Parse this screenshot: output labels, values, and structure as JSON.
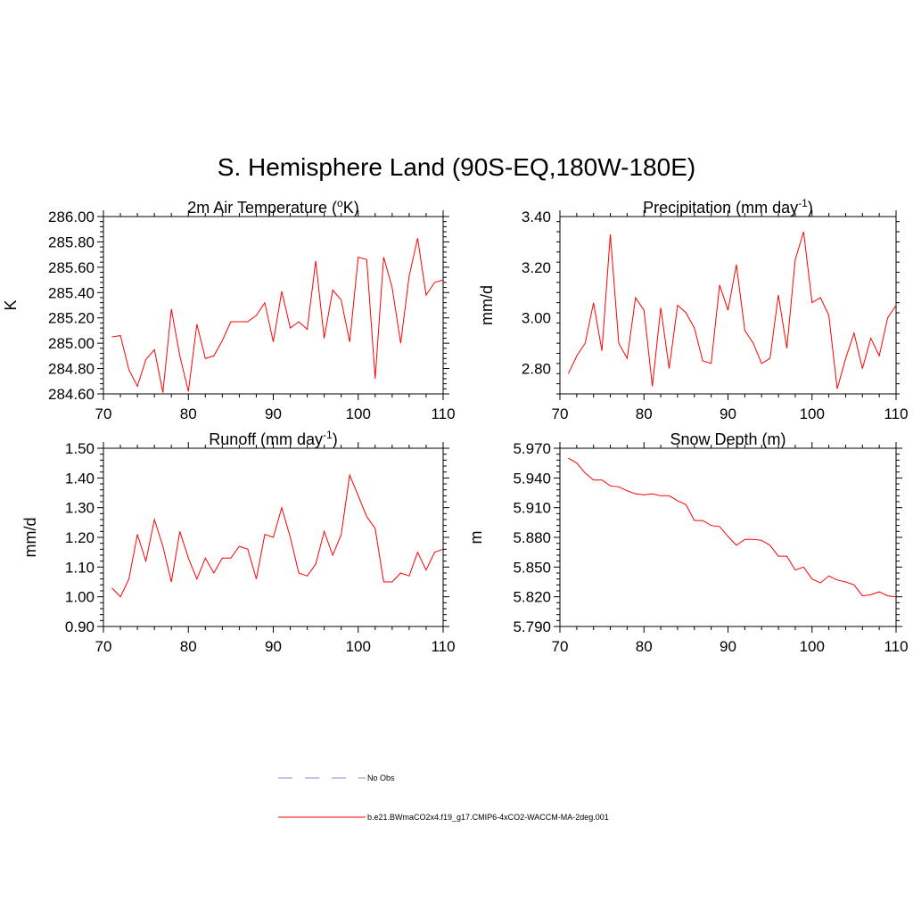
{
  "title": "S. Hemisphere Land (90S-EQ,180W-180E)",
  "legend": {
    "obs_label": "No Obs",
    "model_label": "b.e21.BWmaCO2x4.f19_g17.CMIP6-4xCO2-WACCM-MA-2deg.001",
    "obs_color": "#a0a0e8",
    "model_color": "#ff0000"
  },
  "chart_data": [
    {
      "type": "line",
      "title_main": "2m Air Temperature (",
      "title_sup": "o",
      "title_tail": "K)",
      "ylabel": "K",
      "xlim": [
        70,
        110
      ],
      "ylim": [
        284.6,
        286.0
      ],
      "xticks": [
        70,
        80,
        90,
        100,
        110
      ],
      "xtick_labels": [
        "70",
        "80",
        "90",
        "100",
        "110"
      ],
      "yticks": [
        284.6,
        284.8,
        285.0,
        285.2,
        285.4,
        285.6,
        285.8,
        286.0
      ],
      "ytick_labels": [
        "284.60",
        "284.80",
        "285.00",
        "285.20",
        "285.40",
        "285.60",
        "285.80",
        "286.00"
      ],
      "x": [
        71,
        72,
        73,
        74,
        75,
        76,
        77,
        78,
        79,
        80,
        81,
        82,
        83,
        84,
        85,
        86,
        87,
        88,
        89,
        90,
        91,
        92,
        93,
        94,
        95,
        96,
        97,
        98,
        99,
        100,
        101,
        102,
        103,
        104,
        105,
        106,
        107,
        108,
        109,
        110
      ],
      "values": [
        285.05,
        285.06,
        284.79,
        284.66,
        284.87,
        284.95,
        284.61,
        285.27,
        284.9,
        284.62,
        285.15,
        284.88,
        284.9,
        285.02,
        285.17,
        285.17,
        285.17,
        285.22,
        285.32,
        285.01,
        285.41,
        285.12,
        285.17,
        285.11,
        285.65,
        285.04,
        285.42,
        285.34,
        285.01,
        285.68,
        285.66,
        284.72,
        285.68,
        285.44,
        285.0,
        285.53,
        285.83,
        285.38,
        285.48,
        285.5
      ],
      "color": "#ff0000"
    },
    {
      "type": "line",
      "title_main": "Precipitation (mm day",
      "title_sup": "-1",
      "title_tail": ")",
      "ylabel": "mm/d",
      "xlim": [
        70,
        110
      ],
      "ylim": [
        2.7,
        3.4
      ],
      "xticks": [
        70,
        80,
        90,
        100,
        110
      ],
      "xtick_labels": [
        "70",
        "80",
        "90",
        "100",
        "110"
      ],
      "yticks": [
        2.8,
        3.0,
        3.2,
        3.4
      ],
      "ytick_labels": [
        "2.80",
        "3.00",
        "3.20",
        "3.40"
      ],
      "x": [
        71,
        72,
        73,
        74,
        75,
        76,
        77,
        78,
        79,
        80,
        81,
        82,
        83,
        84,
        85,
        86,
        87,
        88,
        89,
        90,
        91,
        92,
        93,
        94,
        95,
        96,
        97,
        98,
        99,
        100,
        101,
        102,
        103,
        104,
        105,
        106,
        107,
        108,
        109,
        110
      ],
      "values": [
        2.78,
        2.85,
        2.9,
        3.06,
        2.87,
        3.33,
        2.9,
        2.84,
        3.08,
        3.03,
        2.73,
        3.04,
        2.8,
        3.05,
        3.02,
        2.96,
        2.83,
        2.82,
        3.13,
        3.03,
        3.21,
        2.95,
        2.9,
        2.82,
        2.84,
        3.09,
        2.88,
        3.23,
        3.34,
        3.06,
        3.08,
        3.01,
        2.72,
        2.84,
        2.94,
        2.8,
        2.92,
        2.85,
        3.0,
        3.05
      ],
      "color": "#ff0000"
    },
    {
      "type": "line",
      "title_main": "Runoff (mm day",
      "title_sup": "-1",
      "title_tail": ")",
      "ylabel": "mm/d",
      "xlim": [
        70,
        110
      ],
      "ylim": [
        0.9,
        1.5
      ],
      "xticks": [
        70,
        80,
        90,
        100,
        110
      ],
      "xtick_labels": [
        "70",
        "80",
        "90",
        "100",
        "110"
      ],
      "yticks": [
        0.9,
        1.0,
        1.1,
        1.2,
        1.3,
        1.4,
        1.5
      ],
      "ytick_labels": [
        "0.90",
        "1.00",
        "1.10",
        "1.20",
        "1.30",
        "1.40",
        "1.50"
      ],
      "x": [
        71,
        72,
        73,
        74,
        75,
        76,
        77,
        78,
        79,
        80,
        81,
        82,
        83,
        84,
        85,
        86,
        87,
        88,
        89,
        90,
        91,
        92,
        93,
        94,
        95,
        96,
        97,
        98,
        99,
        100,
        101,
        102,
        103,
        104,
        105,
        106,
        107,
        108,
        109,
        110
      ],
      "values": [
        1.03,
        1.0,
        1.06,
        1.21,
        1.12,
        1.26,
        1.17,
        1.05,
        1.22,
        1.13,
        1.06,
        1.13,
        1.08,
        1.13,
        1.13,
        1.17,
        1.16,
        1.06,
        1.21,
        1.2,
        1.3,
        1.2,
        1.08,
        1.07,
        1.11,
        1.22,
        1.14,
        1.21,
        1.41,
        1.34,
        1.27,
        1.23,
        1.05,
        1.05,
        1.08,
        1.07,
        1.15,
        1.09,
        1.15,
        1.16
      ],
      "color": "#ff0000"
    },
    {
      "type": "line",
      "title_main": "Snow Depth (m)",
      "title_sup": "",
      "title_tail": "",
      "ylabel": "m",
      "xlim": [
        70,
        110
      ],
      "ylim": [
        5.79,
        5.97
      ],
      "xticks": [
        70,
        80,
        90,
        100,
        110
      ],
      "xtick_labels": [
        "70",
        "80",
        "90",
        "100",
        "110"
      ],
      "yticks": [
        5.79,
        5.82,
        5.85,
        5.88,
        5.91,
        5.94,
        5.97
      ],
      "ytick_labels": [
        "5.790",
        "5.820",
        "5.850",
        "5.880",
        "5.910",
        "5.940",
        "5.970"
      ],
      "x": [
        71,
        72,
        73,
        74,
        75,
        76,
        77,
        78,
        79,
        80,
        81,
        82,
        83,
        84,
        85,
        86,
        87,
        88,
        89,
        90,
        91,
        92,
        93,
        94,
        95,
        96,
        97,
        98,
        99,
        100,
        101,
        102,
        103,
        104,
        105,
        106,
        107,
        108,
        109,
        110
      ],
      "values": [
        5.96,
        5.955,
        5.945,
        5.938,
        5.938,
        5.932,
        5.931,
        5.927,
        5.924,
        5.923,
        5.924,
        5.922,
        5.922,
        5.917,
        5.913,
        5.897,
        5.897,
        5.892,
        5.891,
        5.881,
        5.872,
        5.878,
        5.878,
        5.877,
        5.872,
        5.861,
        5.861,
        5.847,
        5.85,
        5.838,
        5.834,
        5.841,
        5.837,
        5.835,
        5.832,
        5.821,
        5.822,
        5.825,
        5.821,
        5.82
      ],
      "color": "#ff0000"
    }
  ]
}
